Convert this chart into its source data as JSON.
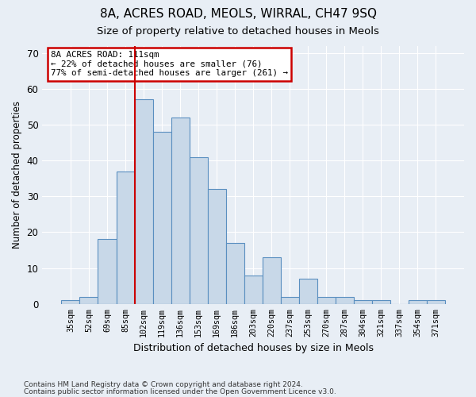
{
  "title1": "8A, ACRES ROAD, MEOLS, WIRRAL, CH47 9SQ",
  "title2": "Size of property relative to detached houses in Meols",
  "xlabel": "Distribution of detached houses by size in Meols",
  "ylabel": "Number of detached properties",
  "bins": [
    "35sqm",
    "52sqm",
    "69sqm",
    "85sqm",
    "102sqm",
    "119sqm",
    "136sqm",
    "153sqm",
    "169sqm",
    "186sqm",
    "203sqm",
    "220sqm",
    "237sqm",
    "253sqm",
    "270sqm",
    "287sqm",
    "304sqm",
    "321sqm",
    "337sqm",
    "354sqm",
    "371sqm"
  ],
  "values": [
    1,
    2,
    18,
    37,
    57,
    48,
    52,
    41,
    32,
    17,
    8,
    13,
    2,
    7,
    2,
    2,
    1,
    1,
    0,
    1,
    1
  ],
  "bar_color": "#c8d8e8",
  "bar_edge_color": "#5a8fc0",
  "red_line_x": 4,
  "annotation_text": "8A ACRES ROAD: 111sqm\n← 22% of detached houses are smaller (76)\n77% of semi-detached houses are larger (261) →",
  "annotation_box_color": "#ffffff",
  "annotation_box_edge": "#cc0000",
  "footer1": "Contains HM Land Registry data © Crown copyright and database right 2024.",
  "footer2": "Contains public sector information licensed under the Open Government Licence v3.0.",
  "ylim": [
    0,
    72
  ],
  "yticks": [
    0,
    10,
    20,
    30,
    40,
    50,
    60,
    70
  ],
  "bg_color": "#e8eef5",
  "grid_color": "#ffffff",
  "title1_fontsize": 11,
  "title2_fontsize": 9.5
}
